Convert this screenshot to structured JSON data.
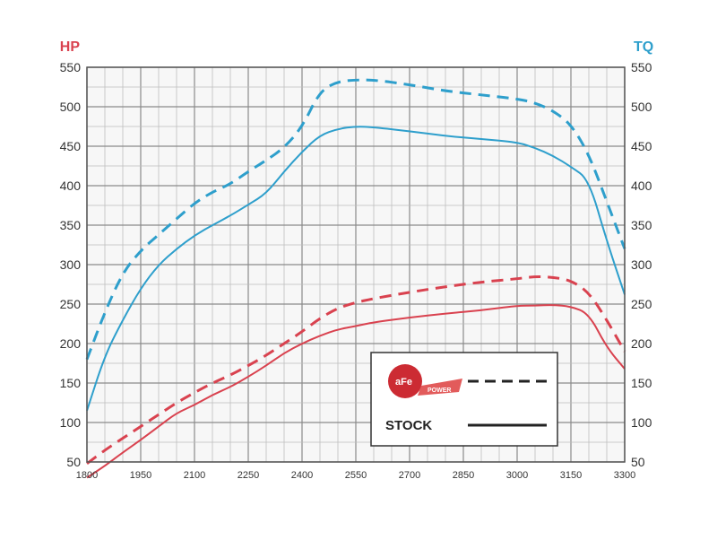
{
  "chart_data": {
    "type": "line",
    "title": "",
    "xlabel": "",
    "left_axis": {
      "label": "HP",
      "color": "#d9424f",
      "ticks": [
        50,
        100,
        150,
        200,
        250,
        300,
        350,
        400,
        450,
        500,
        550
      ],
      "range": [
        50,
        550
      ]
    },
    "right_axis": {
      "label": "TQ",
      "color": "#2e9fcc",
      "ticks": [
        50,
        100,
        150,
        200,
        250,
        300,
        350,
        400,
        450,
        500,
        550
      ],
      "range": [
        50,
        550
      ]
    },
    "x_ticks": [
      1800,
      1950,
      2100,
      2250,
      2400,
      2550,
      2700,
      2850,
      3000,
      3150,
      3300
    ],
    "x_range": [
      1800,
      3300
    ],
    "grid": true,
    "legend": {
      "placement": "bottom-right",
      "entries": [
        {
          "label": "",
          "logo_text": "aFe",
          "logo_subtext": "POWER",
          "style": "dashed"
        },
        {
          "label": "STOCK",
          "style": "solid"
        }
      ]
    },
    "series": [
      {
        "axis": "TQ",
        "style": "dashed",
        "color": "#2e9fcc",
        "x": [
          1800,
          1850,
          1900,
          1950,
          2000,
          2050,
          2100,
          2150,
          2200,
          2250,
          2300,
          2350,
          2400,
          2450,
          2500,
          2550,
          2600,
          2700,
          2800,
          2900,
          3000,
          3050,
          3100,
          3150,
          3200,
          3250,
          3300
        ],
        "y": [
          180,
          240,
          290,
          318,
          338,
          358,
          378,
          392,
          402,
          418,
          432,
          448,
          474,
          520,
          532,
          534,
          534,
          528,
          520,
          515,
          510,
          505,
          495,
          478,
          440,
          380,
          320
        ]
      },
      {
        "axis": "TQ",
        "style": "solid",
        "color": "#2e9fcc",
        "x": [
          1800,
          1850,
          1900,
          1950,
          2000,
          2050,
          2100,
          2150,
          2200,
          2250,
          2300,
          2350,
          2400,
          2450,
          2500,
          2550,
          2600,
          2700,
          2800,
          2900,
          3000,
          3050,
          3100,
          3150,
          3200,
          3250,
          3300
        ],
        "y": [
          115,
          185,
          230,
          270,
          300,
          320,
          337,
          350,
          362,
          376,
          390,
          418,
          443,
          464,
          472,
          475,
          474,
          469,
          463,
          459,
          455,
          448,
          438,
          424,
          408,
          330,
          262
        ]
      },
      {
        "axis": "HP",
        "style": "dashed",
        "color": "#d9424f",
        "x": [
          1800,
          1850,
          1900,
          1950,
          2000,
          2050,
          2100,
          2150,
          2200,
          2250,
          2300,
          2350,
          2400,
          2450,
          2500,
          2550,
          2600,
          2700,
          2800,
          2900,
          3000,
          3050,
          3100,
          3150,
          3200,
          3250,
          3300
        ],
        "y": [
          48,
          65,
          80,
          95,
          110,
          125,
          138,
          150,
          160,
          172,
          185,
          200,
          215,
          232,
          245,
          252,
          257,
          265,
          272,
          278,
          282,
          285,
          284,
          280,
          265,
          230,
          190
        ]
      },
      {
        "axis": "HP",
        "style": "solid",
        "color": "#d9424f",
        "x": [
          1800,
          1850,
          1900,
          1950,
          2000,
          2050,
          2100,
          2150,
          2200,
          2250,
          2300,
          2350,
          2400,
          2450,
          2500,
          2550,
          2600,
          2700,
          2800,
          2900,
          3000,
          3050,
          3100,
          3150,
          3200,
          3250,
          3300
        ],
        "y": [
          30,
          45,
          62,
          78,
          95,
          112,
          122,
          135,
          145,
          158,
          172,
          188,
          200,
          210,
          218,
          222,
          227,
          233,
          238,
          242,
          248,
          248,
          249,
          247,
          238,
          195,
          168
        ]
      }
    ]
  }
}
